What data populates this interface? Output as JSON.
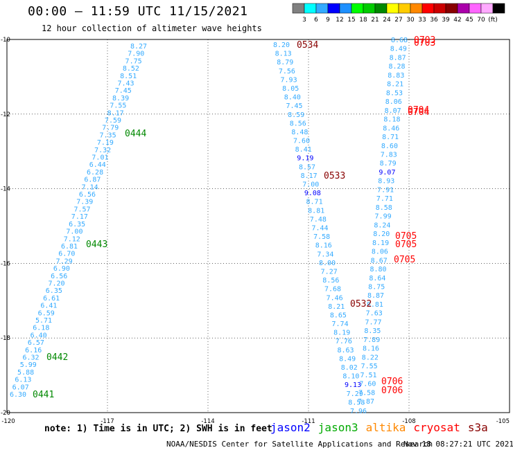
{
  "header": {
    "title": "00:00 – 11:59 UTC 11/15/2021",
    "subtitle": "12 hour collection of altimeter wave heights"
  },
  "legend": {
    "colors": [
      "#808080",
      "#00ffff",
      "#33aaff",
      "#0000ff",
      "#1e90ff",
      "#00ff00",
      "#00cc00",
      "#008800",
      "#ffff00",
      "#ffcc00",
      "#ff8800",
      "#ff0000",
      "#cc0000",
      "#880000",
      "#aa00aa",
      "#ff66ff",
      "#ffaaff",
      "#000000"
    ],
    "labels": [
      "3",
      "6",
      "9",
      "12",
      "15",
      "18",
      "21",
      "24",
      "27",
      "30",
      "33",
      "36",
      "39",
      "42",
      "45",
      "70",
      "(ft)"
    ]
  },
  "axes": {
    "x_ticks": [
      "-120",
      "-117",
      "-114",
      "-111",
      "-108",
      "-105"
    ],
    "y_ticks": [
      "-10",
      "-12",
      "-14",
      "-16",
      "-18",
      "-20"
    ]
  },
  "tracks": {
    "track_a": [
      "8.27",
      "7.90",
      "7.75",
      "8.52",
      "8.51",
      "7.43",
      "7.45",
      "8.39",
      "7.55",
      "8.17",
      "7.59",
      "7.79",
      "7.35",
      "7.19",
      "7.32",
      "7.01",
      "6.44",
      "6.28",
      "6.87",
      "7.14",
      "6.56",
      "7.39",
      "7.57",
      "7.17",
      "6.35",
      "7.00",
      "7.12",
      "6.81",
      "6.70",
      "7.29",
      "6.90",
      "6.56",
      "7.20",
      "6.35",
      "6.61",
      "6.41",
      "6.59",
      "5.71",
      "6.18",
      "6.40",
      "6.57",
      "6.16",
      "6.32",
      "5.99",
      "5.88",
      "6.13",
      "6.07",
      "6.30"
    ],
    "track_b": [
      "8.20",
      "8.13",
      "8.79",
      "7.56",
      "7.93",
      "8.05",
      "8.40",
      "7.45",
      "8.59",
      "8.56",
      "8.48",
      "7.60",
      "8.41",
      "9.19",
      "8.57",
      "8.17",
      "7.00",
      "9.08",
      "8.71",
      "8.81",
      "7.48",
      "7.44",
      "7.58",
      "8.16",
      "7.34",
      "8.00",
      "7.27",
      "8.56",
      "7.68",
      "7.46",
      "8.21",
      "8.65",
      "7.74",
      "8.19",
      "7.76",
      "8.63",
      "8.49",
      "8.02",
      "8.10",
      "9.13",
      "7.29",
      "8.58",
      "7.96"
    ],
    "track_c": [
      "8.68",
      "8.49",
      "8.87",
      "8.28",
      "8.83",
      "8.21",
      "8.53",
      "8.06",
      "8.07",
      "8.18",
      "8.46",
      "8.71",
      "8.60",
      "7.83",
      "8.79",
      "9.07",
      "8.93",
      "7.91",
      "7.71",
      "8.58",
      "7.99",
      "8.24",
      "8.20",
      "8.19",
      "8.06",
      "8.67",
      "8.80",
      "8.64",
      "8.75",
      "8.87",
      "8.81",
      "7.63",
      "7.77",
      "8.35",
      "7.89",
      "8.16",
      "8.22",
      "7.55",
      "7.51",
      "7.60",
      "7.58",
      "7.87"
    ]
  },
  "pass_times": {
    "jason3_0444": "0444",
    "jason3_0443": "0443",
    "jason3_0442": "0442",
    "jason3_0441": "0441",
    "altika_0534": "0534",
    "altika_0533": "0533",
    "altika_0532": "0532",
    "cryosat_0703a": "0703",
    "cryosat_0703b": "0703",
    "cryosat_0704a": "0704",
    "cryosat_0704b": "0704",
    "cryosat_0705a": "0705",
    "cryosat_0705b": "0705",
    "cryosat_0706a": "0706",
    "cryosat_0706b": "0706"
  },
  "colors": {
    "jason3": "#008800",
    "altika_time": "#880000",
    "cryosat": "#ff0000",
    "swh_default": "#33aaff",
    "swh_high": "#0000ff",
    "grid": "#000000"
  },
  "footer": {
    "note": "note: 1) Time is in UTC; 2) SWH is in feet",
    "sat_jason2": "jason2",
    "sat_jason3": "jason3",
    "sat_altika": "altika",
    "sat_cryosat": "cryosat",
    "sat_s3a": "s3a",
    "sat_colors": {
      "jason2": "#0000ff",
      "jason3": "#00aa00",
      "altika": "#ff8800",
      "cryosat": "#ff0000",
      "s3a": "#880000"
    },
    "credit": "NOAA/NESDIS Center for Satellite Applications and Research",
    "timestamp": "Nov 18 08:27:21 UTC 2021"
  }
}
